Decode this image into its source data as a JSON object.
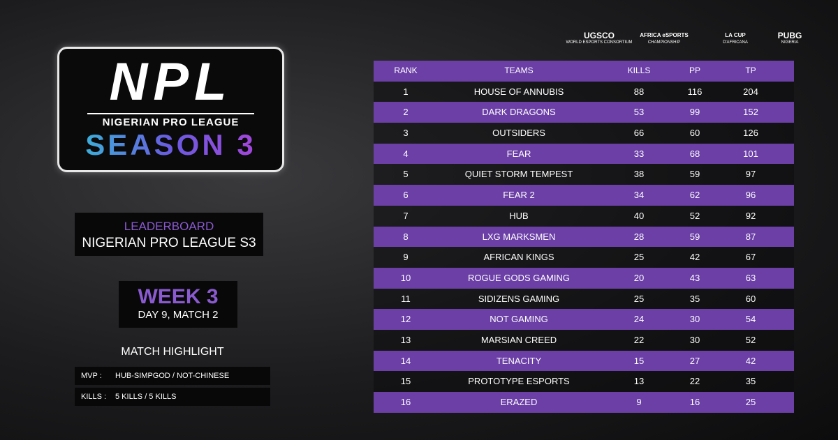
{
  "logo": {
    "title": "NPL",
    "subtitle": "NIGERIAN PRO LEAGUE",
    "season": "SEASON 3"
  },
  "leaderboard_panel": {
    "title": "LEADERBOARD",
    "subtitle": "NIGERIAN PRO LEAGUE S3"
  },
  "week_panel": {
    "title": "WEEK 3",
    "subtitle": "DAY 9, MATCH 2"
  },
  "match_highlight": {
    "title": "MATCH HIGHLIGHT",
    "rows": [
      [
        "MVP :",
        "HUB-SIMPGOD / NOT-CHINESE"
      ],
      [
        "KILLS :",
        "5 KILLS  / 5 KILLS"
      ]
    ]
  },
  "sponsors": [
    [
      "UGSCO",
      "WORLD ESPORTS CONSORTIUM"
    ],
    [
      "AFRICA eSPORTS",
      "CHAMPIONSHIP"
    ],
    [
      "LA CUP",
      "D'AFRICANA"
    ],
    [
      "PUBG",
      "NIGERIA"
    ]
  ],
  "table": {
    "headers": [
      "RANK",
      "TEAMS",
      "KILLS",
      "PP",
      "TP"
    ],
    "rows": [
      [
        1,
        "HOUSE OF ANNUBIS",
        88,
        116,
        204
      ],
      [
        2,
        "DARK DRAGONS",
        53,
        99,
        152
      ],
      [
        3,
        "OUTSIDERS",
        66,
        60,
        126
      ],
      [
        4,
        "FEAR",
        33,
        68,
        101
      ],
      [
        5,
        "QUIET STORM TEMPEST",
        38,
        59,
        97
      ],
      [
        6,
        "FEAR 2",
        34,
        62,
        96
      ],
      [
        7,
        "HUB",
        40,
        52,
        92
      ],
      [
        8,
        "LXG MARKSMEN",
        28,
        59,
        87
      ],
      [
        9,
        "AFRICAN KINGS",
        25,
        42,
        67
      ],
      [
        10,
        "ROGUE GODS GAMING",
        20,
        43,
        63
      ],
      [
        11,
        "SIDIZENS GAMING",
        25,
        35,
        60
      ],
      [
        12,
        "NOT GAMING",
        24,
        30,
        54
      ],
      [
        13,
        "MARSIAN CREED",
        22,
        30,
        52
      ],
      [
        14,
        "TENACITY",
        15,
        27,
        42
      ],
      [
        15,
        "PROTOTYPE ESPORTS",
        13,
        22,
        35
      ],
      [
        16,
        "ERAZED",
        9,
        16,
        25
      ]
    ]
  }
}
